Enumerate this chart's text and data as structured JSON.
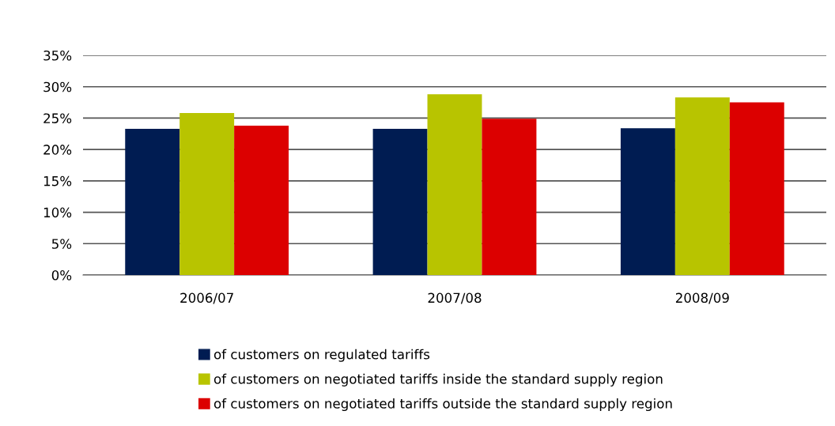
{
  "chart_data": {
    "type": "bar",
    "categories": [
      "2006/07",
      "2007/08",
      "2008/09"
    ],
    "series": [
      {
        "name": "of customers on regulated tariffs",
        "color": "#001c52",
        "values": [
          23.3,
          23.3,
          23.4
        ]
      },
      {
        "name": "of customers on negotiated tariffs inside the standard supply region",
        "color": "#b8c400",
        "values": [
          25.8,
          28.8,
          28.3
        ]
      },
      {
        "name": "of customers on negotiated tariffs outside the standard supply region",
        "color": "#dc0000",
        "values": [
          23.8,
          24.9,
          27.5
        ]
      }
    ],
    "ylim": [
      0,
      35
    ],
    "yticks": [
      {
        "value": 0,
        "label": "0%"
      },
      {
        "value": 5,
        "label": "5%"
      },
      {
        "value": 10,
        "label": "10%"
      },
      {
        "value": 15,
        "label": "15%"
      },
      {
        "value": 20,
        "label": "20%"
      },
      {
        "value": 25,
        "label": "25%"
      },
      {
        "value": 30,
        "label": "30%"
      },
      {
        "value": 35,
        "label": "35%"
      }
    ],
    "grid": "y",
    "legend": "bottom"
  }
}
